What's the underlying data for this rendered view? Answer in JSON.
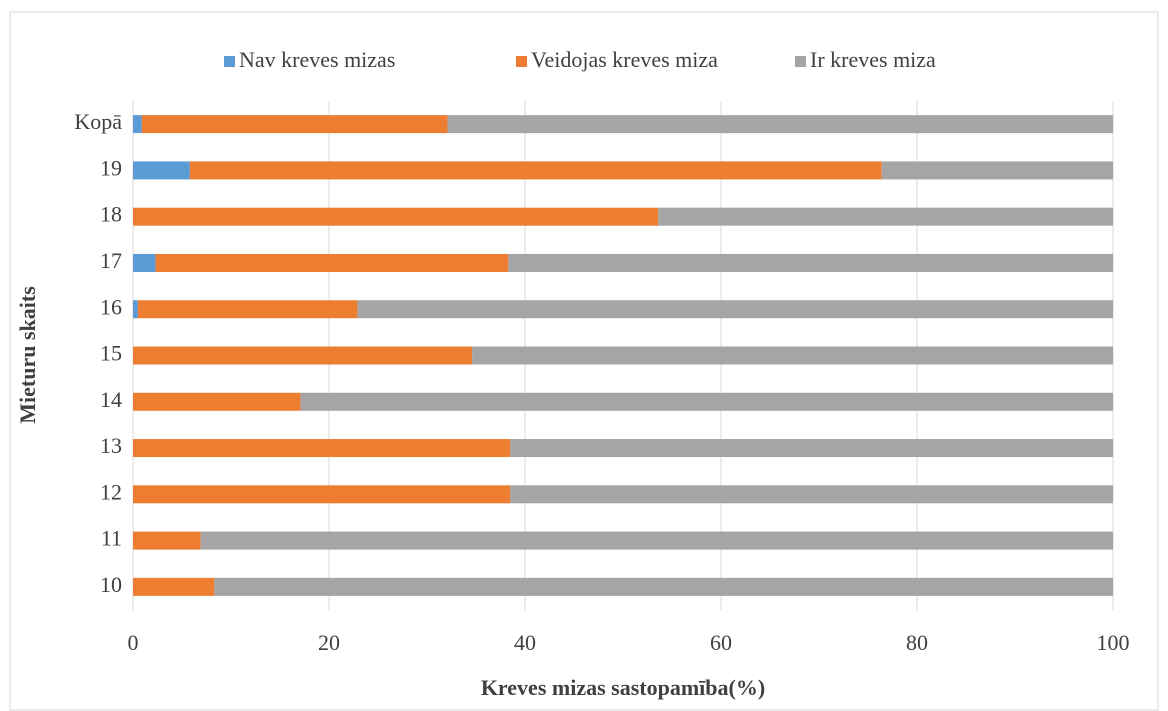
{
  "chart_data": {
    "type": "stacked_bar_horizontal",
    "x_label": "Kreves mizas  sastopamība(%)",
    "y_label": "Mieturu skaits",
    "categories": [
      "Kopā",
      "19",
      "18",
      "17",
      "16",
      "15",
      "14",
      "13",
      "12",
      "11",
      "10"
    ],
    "series": [
      {
        "name": "Nav kreves mizas",
        "color": "#5b9bd5",
        "values": [
          0.9,
          5.8,
          0,
          2.3,
          0.5,
          0,
          0,
          0,
          0,
          0,
          0
        ]
      },
      {
        "name": "Veidojas kreves miza",
        "color": "#ed7d31",
        "values": [
          31.2,
          70.6,
          53.6,
          36.0,
          22.4,
          34.6,
          17.1,
          38.5,
          38.5,
          6.9,
          8.3
        ]
      },
      {
        "name": "Ir kreves miza",
        "color": "#a5a5a5",
        "values": [
          67.9,
          23.6,
          46.4,
          61.7,
          77.1,
          65.4,
          82.9,
          61.5,
          61.5,
          93.1,
          91.7
        ]
      }
    ],
    "xlim": [
      0,
      100
    ],
    "xticks": [
      0,
      20,
      40,
      60,
      80,
      100
    ],
    "grid": true,
    "legend": "top"
  }
}
